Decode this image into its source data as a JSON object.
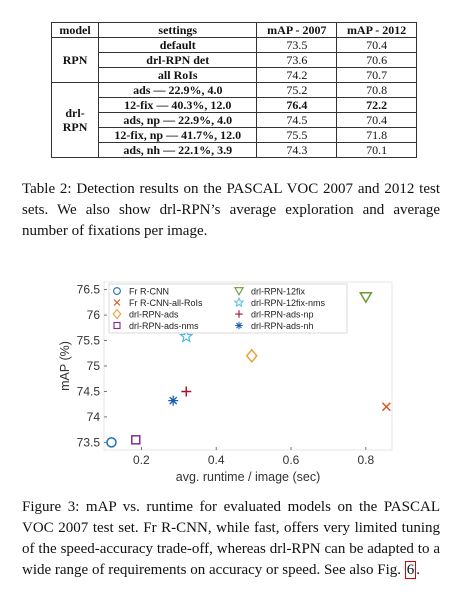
{
  "table": {
    "headers": [
      "model",
      "settings",
      "mAP - 2007",
      "mAP - 2012"
    ],
    "groups": [
      {
        "model": "RPN",
        "rows": [
          {
            "settings": "default",
            "map2007": "73.5",
            "map2012": "70.4"
          },
          {
            "settings": "drl-RPN det",
            "map2007": "73.6",
            "map2012": "70.6"
          },
          {
            "settings": "all RoIs",
            "map2007": "74.2",
            "map2012": "70.7"
          }
        ]
      },
      {
        "model": "drl-\nRPN",
        "rows": [
          {
            "settings": "ads — 22.9%, 4.0",
            "map2007": "75.2",
            "map2012": "70.8"
          },
          {
            "settings": "12-fix — 40.3%, 12.0",
            "map2007": "76.4",
            "map2012": "72.2",
            "best": true
          },
          {
            "settings": "ads, np — 22.9%, 4.0",
            "map2007": "74.5",
            "map2012": "70.4"
          },
          {
            "settings": "12-fix, np — 41.7%, 12.0",
            "map2007": "75.5",
            "map2012": "71.8"
          },
          {
            "settings": "ads, nh — 22.1%, 3.9",
            "map2007": "74.3",
            "map2012": "70.1"
          }
        ]
      }
    ]
  },
  "table_caption": "Table 2: Detection results on the PASCAL VOC 2007 and 2012 test sets. We also show drl-RPN’s average exploration and average number of fixations per image.",
  "chart_data": {
    "type": "scatter",
    "xlabel": "avg. runtime / image (sec)",
    "ylabel": "mAP (%)",
    "xlim": [
      0.1,
      0.87
    ],
    "ylim": [
      73.35,
      76.65
    ],
    "xticks": [
      0.2,
      0.4,
      0.6,
      0.8
    ],
    "yticks": [
      73.5,
      74,
      74.5,
      75,
      75.5,
      76,
      76.5
    ],
    "grid": false,
    "legend_placement": "top-left",
    "series": [
      {
        "name": "Fr R-CNN",
        "marker": "circle",
        "color": "#1f6fbf",
        "x": 0.12,
        "y": 73.5
      },
      {
        "name": "Fr R-CNN-all-RoIs",
        "marker": "x",
        "color": "#d9541e",
        "x": 0.855,
        "y": 74.2
      },
      {
        "name": "drl-RPN-ads",
        "marker": "diamond",
        "color": "#e8a23a",
        "x": 0.495,
        "y": 75.2
      },
      {
        "name": "drl-RPN-ads-nms",
        "marker": "square",
        "color": "#7b2f8e",
        "x": 0.185,
        "y": 73.55
      },
      {
        "name": "drl-RPN-12fix",
        "marker": "triangle-down",
        "color": "#6b9b34",
        "x": 0.8,
        "y": 76.35
      },
      {
        "name": "drl-RPN-12fix-nms",
        "marker": "star",
        "color": "#4fb7e5",
        "x": 0.32,
        "y": 75.58
      },
      {
        "name": "drl-RPN-ads-np",
        "marker": "plus",
        "color": "#a3172f",
        "x": 0.32,
        "y": 74.5
      },
      {
        "name": "drl-RPN-ads-nh",
        "marker": "asterisk",
        "color": "#1b5fb0",
        "x": 0.285,
        "y": 74.32
      }
    ]
  },
  "figure_caption_main": "Figure 3: mAP vs. runtime for evaluated models on the PASCAL VOC 2007 test set. Fr R-CNN, while fast, offers very limited tuning of the speed-accuracy trade-off, whereas drl-RPN can be adapted to a wide range of requirements on accuracy or speed. See also Fig. ",
  "figure_caption_ref": "6",
  "figure_caption_end": "."
}
